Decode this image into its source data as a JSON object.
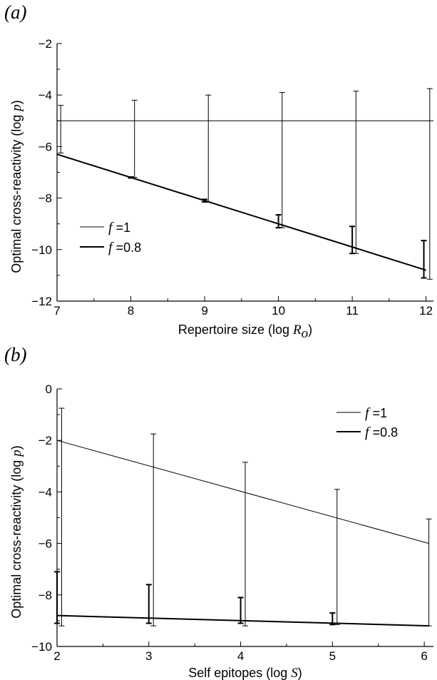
{
  "chart_data": [
    {
      "type": "line",
      "panel_label": "(a)",
      "xlabel_prefix": "Repertoire size (log ",
      "xlabel_var": "R",
      "xlabel_sub": "o",
      "xlabel_suffix": ")",
      "ylabel_prefix": "Optimal cross-reactivity (log ",
      "ylabel_var": "p",
      "ylabel_suffix": ")",
      "xlim": [
        7,
        12.1
      ],
      "ylim": [
        -12,
        -2
      ],
      "xticks": [
        7,
        8,
        9,
        10,
        11,
        12
      ],
      "yticks": [
        -12,
        -10,
        -8,
        -6,
        -4,
        -2
      ],
      "grid": false,
      "legend_position": "bottom-left",
      "series": [
        {
          "var": "f",
          "eq": " =1",
          "line_width": 1,
          "points": [
            [
              7,
              -5
            ],
            [
              12.1,
              -5
            ]
          ],
          "error_bars": [
            {
              "x": 7.05,
              "y_low": -6.25,
              "y_high": -4.4
            },
            {
              "x": 8.05,
              "y_low": -7.2,
              "y_high": -4.2
            },
            {
              "x": 9.05,
              "y_low": -8.15,
              "y_high": -4.0
            },
            {
              "x": 10.05,
              "y_low": -9.15,
              "y_high": -3.9
            },
            {
              "x": 11.05,
              "y_low": -10.15,
              "y_high": -3.85
            },
            {
              "x": 12.05,
              "y_low": -11.15,
              "y_high": -3.75
            }
          ]
        },
        {
          "var": "f",
          "eq": " =0.8",
          "line_width": 2,
          "points": [
            [
              7,
              -6.3
            ],
            [
              12,
              -10.8
            ]
          ],
          "error_bars": [
            {
              "x": 8.0,
              "y_low": -7.22,
              "y_high": -7.18
            },
            {
              "x": 9.0,
              "y_low": -8.15,
              "y_high": -8.05
            },
            {
              "x": 10.0,
              "y_low": -9.15,
              "y_high": -8.65
            },
            {
              "x": 11.0,
              "y_low": -10.15,
              "y_high": -9.1
            },
            {
              "x": 11.97,
              "y_low": -11.1,
              "y_high": -9.65
            }
          ]
        }
      ]
    },
    {
      "type": "line",
      "panel_label": "(b)",
      "xlabel_prefix": "Self epitopes (log ",
      "xlabel_var": "S",
      "xlabel_sub": "",
      "xlabel_suffix": ")",
      "ylabel_prefix": "Optimal cross-reactivity (log ",
      "ylabel_var": "p",
      "ylabel_suffix": ")",
      "xlim": [
        2,
        6.1
      ],
      "ylim": [
        -10,
        0
      ],
      "xticks": [
        2,
        3,
        4,
        5,
        6
      ],
      "yticks": [
        -10,
        -8,
        -6,
        -4,
        -2,
        0
      ],
      "grid": false,
      "legend_position": "top-right",
      "series": [
        {
          "var": "f",
          "eq": " =1",
          "line_width": 1,
          "points": [
            [
              2,
              -2
            ],
            [
              6.05,
              -6
            ]
          ],
          "error_bars": [
            {
              "x": 2.05,
              "y_low": -9.2,
              "y_high": -0.75
            },
            {
              "x": 3.05,
              "y_low": -9.2,
              "y_high": -1.75
            },
            {
              "x": 4.05,
              "y_low": -9.2,
              "y_high": -2.85
            },
            {
              "x": 5.05,
              "y_low": -9.15,
              "y_high": -3.9
            },
            {
              "x": 6.05,
              "y_low": -9.2,
              "y_high": -5.05
            }
          ]
        },
        {
          "var": "f",
          "eq": " =0.8",
          "line_width": 2,
          "points": [
            [
              2,
              -8.8
            ],
            [
              6.05,
              -9.2
            ]
          ],
          "error_bars": [
            {
              "x": 2.0,
              "y_low": -9.1,
              "y_high": -7.1
            },
            {
              "x": 3.0,
              "y_low": -9.1,
              "y_high": -7.6
            },
            {
              "x": 4.0,
              "y_low": -9.1,
              "y_high": -8.1
            },
            {
              "x": 5.0,
              "y_low": -9.15,
              "y_high": -8.7
            }
          ]
        }
      ]
    }
  ]
}
